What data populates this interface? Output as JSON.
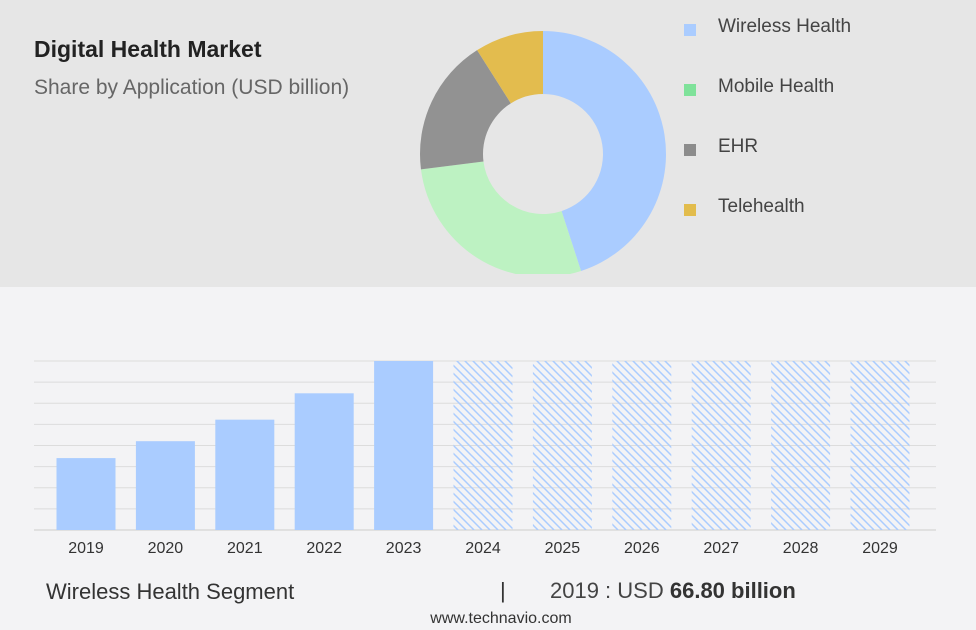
{
  "title": "Digital Health Market",
  "subtitle": "Share by Application (USD billion)",
  "chart_data": [
    {
      "type": "pie",
      "donut": true,
      "title": "Digital Health Market",
      "subtitle": "Share by Application (USD billion)",
      "categories": [
        "Wireless Health",
        "Mobile Health",
        "EHR",
        "Telehealth"
      ],
      "values": [
        45,
        28,
        18,
        9
      ],
      "colors": [
        "#aaccff",
        "#bdf2c2",
        "#929292",
        "#e3bc4e"
      ],
      "legend": "right"
    },
    {
      "type": "bar",
      "categories": [
        "2019",
        "2020",
        "2021",
        "2022",
        "2023",
        "2024",
        "2025",
        "2026",
        "2027",
        "2028",
        "2029"
      ],
      "values": [
        66.8,
        82.5,
        102.5,
        127,
        157,
        null,
        null,
        null,
        null,
        null,
        null
      ],
      "forecast_categories": [
        "2024",
        "2025",
        "2026",
        "2027",
        "2028",
        "2029"
      ],
      "ylim": [
        0,
        157
      ],
      "grid": true,
      "bar_color": "#aaccff",
      "forecast_pattern": "diagonal-hatch"
    }
  ],
  "legend_items": [
    {
      "label": "Wireless Health",
      "color": "#aaccff"
    },
    {
      "label": "Mobile Health",
      "color": "#7fe29a"
    },
    {
      "label": "EHR",
      "color": "#8c8c8c"
    },
    {
      "label": "Telehealth",
      "color": "#e2bc4c"
    }
  ],
  "footer": {
    "segment": "Wireless Health Segment",
    "separator": "|",
    "value_prefix": "2019 : USD",
    "value": "66.80 billion",
    "url": "www.technavio.com"
  }
}
